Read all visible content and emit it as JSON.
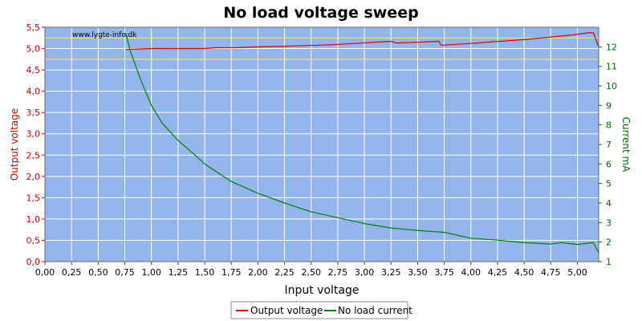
{
  "chart_data": {
    "type": "line",
    "title": "No load voltage sweep",
    "watermark": "www.lygte-info.dk",
    "xlabel": "Input voltage",
    "ylabel_left": "Output voltage",
    "ylabel_right": "Current mA",
    "xlim": [
      0,
      5.2
    ],
    "ylim_left": [
      0,
      5.5
    ],
    "ylim_right": [
      1,
      13
    ],
    "x_ticks": [
      "0,00",
      "0,25",
      "0,50",
      "0,75",
      "1,00",
      "1,25",
      "1,50",
      "1,75",
      "2,00",
      "2,25",
      "2,50",
      "2,75",
      "3,00",
      "3,25",
      "3,50",
      "3,75",
      "4,00",
      "4,25",
      "4,50",
      "4,75",
      "5,00"
    ],
    "y_left_ticks": [
      "0,0",
      "0,5",
      "1,0",
      "1,5",
      "2,0",
      "2,5",
      "3,0",
      "3,5",
      "4,0",
      "4,5",
      "5,0",
      "5,5"
    ],
    "y_right_ticks": [
      "1",
      "2",
      "3",
      "4",
      "5",
      "6",
      "7",
      "8",
      "9",
      "10",
      "11",
      "12"
    ],
    "reference_lines_left": [
      5.25,
      4.75
    ],
    "grid": true,
    "legend_position": "bottom-center",
    "colors": {
      "plot_bg": "#94b4ec",
      "grid": "#ffffff",
      "output": "#dd0000",
      "current": "#008000",
      "reference": "#ffff00",
      "left_axis": "#cc0000",
      "right_axis": "#006600"
    },
    "series": [
      {
        "name": "Output voltage",
        "axis": "left",
        "x": [
          0.76,
          1.0,
          1.25,
          1.5,
          1.6,
          1.8,
          2.0,
          2.2,
          2.45,
          2.7,
          2.9,
          3.1,
          3.25,
          3.3,
          3.5,
          3.7,
          3.72,
          3.8,
          4.0,
          4.2,
          4.5,
          4.75,
          4.95,
          5.1,
          5.15,
          5.2
        ],
        "values": [
          4.98,
          5.0,
          5.0,
          5.0,
          5.02,
          5.02,
          5.04,
          5.05,
          5.07,
          5.09,
          5.12,
          5.15,
          5.17,
          5.13,
          5.15,
          5.17,
          5.08,
          5.09,
          5.12,
          5.16,
          5.21,
          5.27,
          5.32,
          5.37,
          5.37,
          5.04
        ]
      },
      {
        "name": "No load current",
        "axis": "right",
        "x": [
          0.76,
          0.8,
          0.9,
          1.0,
          1.1,
          1.25,
          1.4,
          1.5,
          1.75,
          2.0,
          2.25,
          2.5,
          2.75,
          3.0,
          3.25,
          3.5,
          3.75,
          4.0,
          4.25,
          4.5,
          4.75,
          4.85,
          5.0,
          5.15,
          5.2
        ],
        "values": [
          12.7,
          11.8,
          10.3,
          9.0,
          8.1,
          7.2,
          6.5,
          6.0,
          5.1,
          4.5,
          4.0,
          3.55,
          3.25,
          2.95,
          2.72,
          2.6,
          2.5,
          2.2,
          2.1,
          1.97,
          1.9,
          1.97,
          1.88,
          1.97,
          1.45
        ]
      }
    ]
  }
}
